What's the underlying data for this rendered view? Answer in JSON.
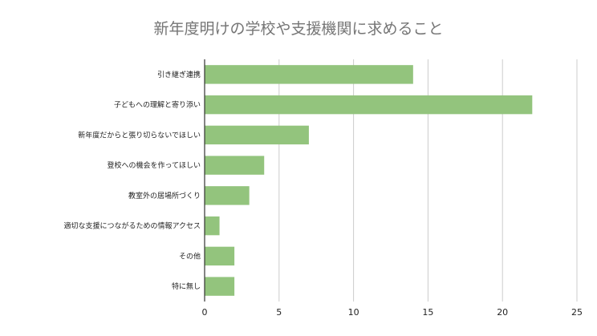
{
  "chart_data": {
    "type": "bar",
    "orientation": "horizontal",
    "title": "新年度明けの学校や支援機関に求めること",
    "categories": [
      "引き継ぎ連携",
      "子どもへの理解と寄り添い",
      "新年度だからと張り切らないでほしい",
      "登校への機会を作ってほしい",
      "教室外の居場所づくり",
      "適切な支援につながるための情報アクセス",
      "その他",
      "特に無し"
    ],
    "values": [
      14,
      22,
      7,
      4,
      3,
      1,
      2,
      2
    ],
    "xlim": [
      0,
      25
    ],
    "xticks": [
      0,
      5,
      10,
      15,
      20,
      25
    ],
    "grid": true,
    "legend": "none",
    "colors": {
      "bar": "#93c47d",
      "grid": "#cccccc",
      "axis": "#333333",
      "title": "#757575",
      "text": "#222222"
    }
  }
}
